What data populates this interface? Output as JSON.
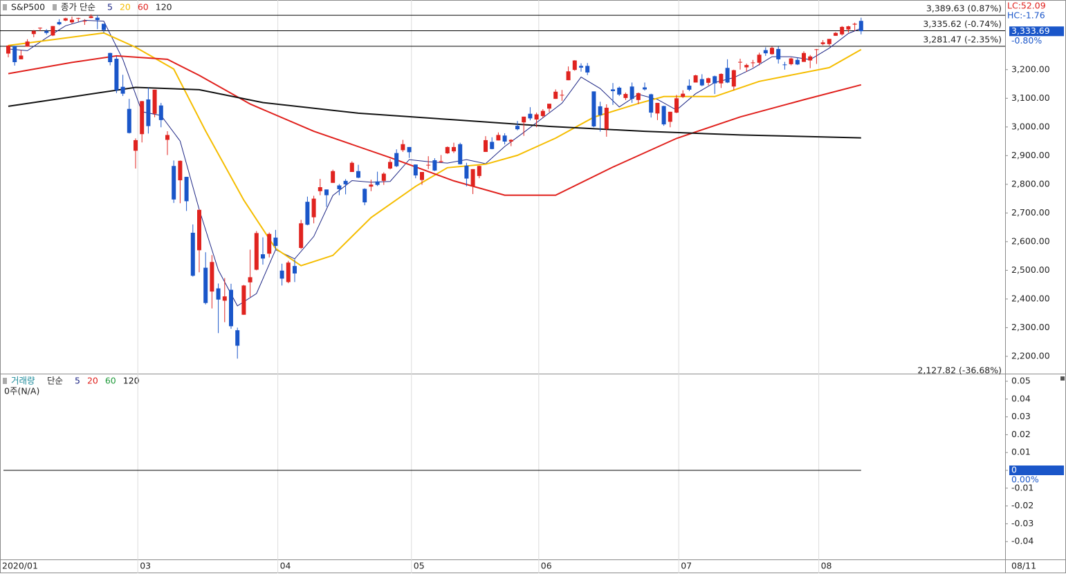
{
  "chart_data": [
    {
      "type": "candlestick",
      "title": "S&P500",
      "ma_label": "종가 단순",
      "categories": [
        "2020/01",
        null,
        null,
        null,
        null,
        null,
        null,
        null,
        null,
        null,
        null,
        null,
        null,
        null,
        null,
        null,
        null,
        null,
        null,
        null,
        null,
        "03",
        null,
        null,
        null,
        null,
        null,
        null,
        null,
        null,
        null,
        null,
        null,
        null,
        null,
        null,
        null,
        null,
        null,
        null,
        null,
        null,
        null,
        "04",
        null,
        null,
        null,
        null,
        null,
        null,
        null,
        null,
        null,
        null,
        null,
        null,
        null,
        null,
        null,
        null,
        null,
        null,
        null,
        null,
        "05",
        null,
        null,
        null,
        null,
        null,
        null,
        null,
        null,
        null,
        null,
        null,
        null,
        null,
        null,
        null,
        null,
        null,
        null,
        null,
        "06",
        null,
        null,
        null,
        null,
        null,
        null,
        null,
        null,
        null,
        null,
        null,
        null,
        null,
        null,
        null,
        null,
        null,
        null,
        null,
        null,
        null,
        "07",
        null,
        null,
        null,
        null,
        null,
        null,
        null,
        null,
        null,
        null,
        null,
        null,
        null,
        null,
        null,
        null,
        null,
        null,
        null,
        null,
        null,
        "08",
        null,
        null,
        null,
        null,
        null,
        null
      ],
      "open": [
        3256,
        3283,
        3236,
        3280,
        3324,
        3344,
        3335,
        3319,
        3366,
        3371,
        3365,
        3379,
        3369,
        3380,
        3381,
        3360,
        3258,
        3238,
        3140,
        3063,
        2917,
        2975,
        3096,
        3046,
        3075,
        2955,
        2864,
        2814,
        2826,
        2631,
        2570,
        2509,
        2426,
        2437,
        2394,
        2432,
        2291,
        2345,
        2458,
        2502,
        2556,
        2558,
        2614,
        2499,
        2459,
        2515,
        2578,
        2739,
        2685,
        2776,
        2782,
        2805,
        2796,
        2812,
        2843,
        2846,
        2784,
        2792,
        2810,
        2812,
        2855,
        2909,
        2919,
        2930,
        2869,
        2815,
        2868,
        2884,
        2878,
        2908,
        2915,
        2940,
        2865,
        2794,
        2829,
        2913,
        2948,
        2953,
        2970,
        2949,
        3004,
        3016,
        3046,
        3026,
        3038,
        3064,
        3098,
        3112,
        3163,
        3199,
        3213,
        3213,
        3124,
        3072,
        2993,
        3131,
        3137,
        3101,
        3141,
        3094,
        3138,
        3114,
        3047,
        3073,
        3018,
        3050,
        3105,
        3144,
        3155,
        3167,
        3154,
        3177,
        3152,
        3206,
        3141,
        3226,
        3208,
        3225,
        3224,
        3268,
        3254,
        3272,
        3218,
        3219,
        3234,
        3227,
        3232,
        3270,
        3289,
        3289,
        3318,
        3323,
        3340,
        3357,
        3370
      ],
      "high": [
        3285,
        3283,
        3268,
        3306,
        3338,
        3347,
        3341,
        3352,
        3376,
        3381,
        3385,
        3381,
        3376,
        3393,
        3390,
        3360,
        3259,
        3247,
        3182,
        3098,
        2960,
        3091,
        3137,
        3130,
        3084,
        2985,
        2883,
        2883,
        2826,
        2660,
        2711,
        2563,
        2553,
        2454,
        2473,
        2453,
        2300,
        2449,
        2572,
        2637,
        2615,
        2632,
        2641,
        2523,
        2533,
        2538,
        2676,
        2757,
        2760,
        2819,
        2782,
        2851,
        2801,
        2818,
        2880,
        2868,
        2786,
        2816,
        2844,
        2842,
        2888,
        2922,
        2955,
        2930,
        2869,
        2843,
        2898,
        2891,
        2902,
        2932,
        2945,
        2945,
        2875,
        2853,
        2865,
        2968,
        2964,
        2981,
        2978,
        2957,
        3021,
        3036,
        3069,
        3050,
        3062,
        3081,
        3131,
        3129,
        3211,
        3233,
        3222,
        3223,
        3124,
        3088,
        3079,
        3153,
        3141,
        3120,
        3155,
        3120,
        3155,
        3116,
        3084,
        3074,
        3053,
        3112,
        3128,
        3166,
        3182,
        3184,
        3172,
        3179,
        3187,
        3236,
        3200,
        3238,
        3221,
        3234,
        3259,
        3278,
        3280,
        3280,
        3227,
        3242,
        3243,
        3264,
        3251,
        3272,
        3303,
        3307,
        3331,
        3352,
        3353,
        3364,
        3381
      ],
      "low": [
        3243,
        3214,
        3236,
        3280,
        3313,
        3334,
        3322,
        3317,
        3355,
        3369,
        3360,
        3367,
        3356,
        3379,
        3341,
        3328,
        3215,
        3118,
        3108,
        2977,
        2855,
        2946,
        2977,
        3034,
        2999,
        2902,
        2735,
        2734,
        2707,
        2478,
        2493,
        2381,
        2367,
        2281,
        2319,
        2296,
        2192,
        2345,
        2407,
        2500,
        2520,
        2545,
        2571,
        2447,
        2455,
        2459,
        2574,
        2657,
        2664,
        2762,
        2721,
        2805,
        2762,
        2765,
        2843,
        2821,
        2727,
        2776,
        2794,
        2798,
        2852,
        2860,
        2913,
        2892,
        2821,
        2798,
        2853,
        2846,
        2874,
        2906,
        2909,
        2869,
        2793,
        2766,
        2821,
        2913,
        2922,
        2953,
        2939,
        2933,
        2988,
        2969,
        3023,
        2999,
        3032,
        3052,
        3098,
        3091,
        3163,
        3196,
        3193,
        3181,
        2999,
        2984,
        2966,
        3077,
        3108,
        3094,
        3084,
        3080,
        3127,
        3033,
        3024,
        3004,
        2999,
        3048,
        3101,
        3125,
        3155,
        3142,
        3145,
        3115,
        3136,
        3153,
        3128,
        3200,
        3193,
        3208,
        3215,
        3248,
        3252,
        3221,
        3200,
        3215,
        3216,
        3227,
        3205,
        3220,
        3285,
        3284,
        3318,
        3319,
        3329,
        3335,
        3323
      ],
      "close": [
        3284,
        3226,
        3249,
        3298,
        3335,
        3346,
        3328,
        3352,
        3358,
        3379,
        3374,
        3380,
        3370,
        3386,
        3373,
        3338,
        3226,
        3128,
        3116,
        2979,
        2954,
        3090,
        3003,
        3130,
        3024,
        2972,
        2747,
        2882,
        2741,
        2481,
        2711,
        2386,
        2529,
        2398,
        2409,
        2305,
        2237,
        2447,
        2476,
        2630,
        2541,
        2627,
        2585,
        2471,
        2527,
        2489,
        2664,
        2659,
        2750,
        2790,
        2762,
        2846,
        2783,
        2800,
        2875,
        2823,
        2737,
        2799,
        2798,
        2837,
        2878,
        2863,
        2940,
        2912,
        2831,
        2843,
        2868,
        2848,
        2881,
        2930,
        2930,
        2870,
        2820,
        2853,
        2864,
        2954,
        2923,
        2972,
        2949,
        2955,
        2992,
        3036,
        3030,
        3044,
        3056,
        3081,
        3123,
        3112,
        3194,
        3232,
        3207,
        3190,
        3002,
        3041,
        3067,
        3125,
        3113,
        3115,
        3098,
        3118,
        3131,
        3050,
        3084,
        3009,
        3053,
        3100,
        3116,
        3130,
        3180,
        3145,
        3170,
        3152,
        3185,
        3155,
        3198,
        3227,
        3216,
        3225,
        3252,
        3257,
        3276,
        3236,
        3216,
        3239,
        3218,
        3258,
        3246,
        3271,
        3295,
        3307,
        3328,
        3349,
        3351,
        3360,
        3334
      ],
      "up_color": "#e0231f",
      "down_color": "#1a56c9",
      "series": [
        {
          "name": "5",
          "color": "#1c2584",
          "x": [
            0,
            3,
            6,
            9,
            12,
            15,
            18,
            21,
            24,
            27,
            30,
            33,
            36,
            39,
            42,
            45,
            48,
            51,
            54,
            57,
            60,
            63,
            66,
            69,
            72,
            75,
            78,
            81,
            84,
            87,
            90,
            93,
            96,
            99,
            102,
            105,
            108,
            111,
            114,
            117,
            120,
            123,
            126,
            129,
            132,
            134
          ],
          "values": [
            3272,
            3266,
            3311,
            3353,
            3372,
            3369,
            3236,
            3053,
            3040,
            2951,
            2712,
            2501,
            2376,
            2419,
            2572,
            2540,
            2618,
            2761,
            2813,
            2807,
            2810,
            2886,
            2879,
            2874,
            2886,
            2872,
            2932,
            2981,
            3032,
            3083,
            3174,
            3134,
            3070,
            3114,
            3096,
            3059,
            3116,
            3155,
            3172,
            3204,
            3245,
            3245,
            3235,
            3275,
            3326,
            3344
          ]
        },
        {
          "name": "20",
          "color": "#f5bd00",
          "x": [
            0,
            15,
            20,
            26,
            31,
            37,
            42,
            46,
            51,
            57,
            64,
            69,
            75,
            80,
            86,
            92,
            99,
            103,
            111,
            118,
            129,
            134
          ],
          "values": [
            3284,
            3328,
            3278,
            3202,
            2986,
            2745,
            2576,
            2516,
            2552,
            2684,
            2793,
            2858,
            2870,
            2901,
            2961,
            3034,
            3082,
            3106,
            3106,
            3159,
            3207,
            3270
          ]
        },
        {
          "name": "60",
          "color": "#e0201c",
          "x": [
            0,
            10,
            17,
            25,
            30,
            38,
            48,
            60,
            70,
            78,
            86,
            95,
            105,
            115,
            125,
            134
          ],
          "values": [
            3186,
            3225,
            3248,
            3236,
            3180,
            3080,
            2985,
            2893,
            2812,
            2762,
            2762,
            2860,
            2960,
            3035,
            3095,
            3147
          ]
        },
        {
          "name": "120",
          "color": "#111111",
          "x": [
            0,
            10,
            20,
            30,
            40,
            55,
            70,
            85,
            100,
            115,
            134
          ],
          "values": [
            3072,
            3105,
            3138,
            3130,
            3085,
            3048,
            3025,
            3002,
            2985,
            2972,
            2962
          ]
        }
      ],
      "ylim": [
        2142,
        3438
      ],
      "yticks": [
        {
          "value": 3200,
          "label": "3,200.00"
        },
        {
          "value": 3100,
          "label": "3,100.00"
        },
        {
          "value": 3000,
          "label": "3,000.00"
        },
        {
          "value": 2900,
          "label": "2,900.00"
        },
        {
          "value": 2800,
          "label": "2,800.00"
        },
        {
          "value": 2700,
          "label": "2,700.00"
        },
        {
          "value": 2600,
          "label": "2,600.00"
        },
        {
          "value": 2500,
          "label": "2,500.00"
        },
        {
          "value": 2400,
          "label": "2,400.00"
        },
        {
          "value": 2300,
          "label": "2,300.00"
        },
        {
          "value": 2200,
          "label": "2,200.00"
        }
      ],
      "reference_lines": [
        {
          "value": 3389.63,
          "label": "3,389.63 (0.87%)"
        },
        {
          "value": 3335.62,
          "label": "3,335.62 (-0.74%)"
        },
        {
          "value": 3281.47,
          "label": "3,281.47 (-2.35%)"
        }
      ],
      "low_label": "2,127.82 (-36.68%)",
      "last_price": {
        "value": 3333.69,
        "label": "3,333.69",
        "change": "-0.80%"
      },
      "lc_label": "LC:52.09",
      "hc_label": "HC:-1.76",
      "last_date_label": "08/11"
    },
    {
      "type": "bar",
      "title": "거래량",
      "ma_label": "단순",
      "note": "0주(N/A)",
      "legend": [
        {
          "name": "5",
          "color": "#1c2584"
        },
        {
          "name": "20",
          "color": "#e0201c"
        },
        {
          "name": "60",
          "color": "#1f9a3a"
        },
        {
          "name": "120",
          "color": "#111111"
        }
      ],
      "ylim": [
        -0.05,
        0.0535
      ],
      "yticks": [
        0.05,
        0.04,
        0.03,
        0.02,
        0.01,
        0,
        -0.01,
        -0.02,
        -0.03,
        -0.04
      ],
      "last_value": {
        "value": 0,
        "label": "0",
        "change": "0.00%"
      }
    }
  ]
}
